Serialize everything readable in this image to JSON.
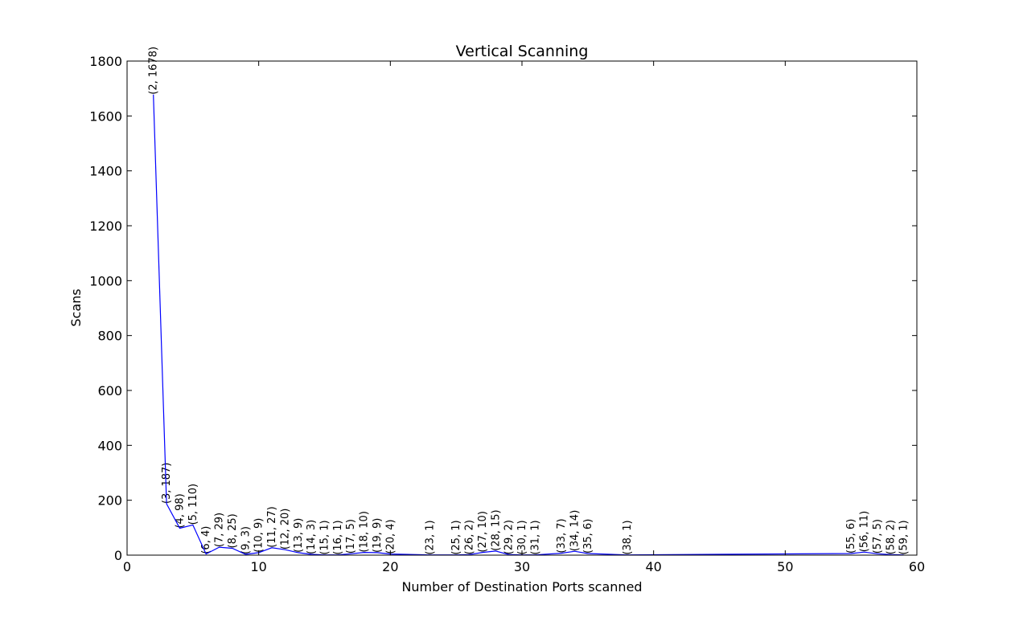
{
  "chart_data": {
    "type": "line",
    "title": "Vertical Scanning",
    "xlabel": "Number of Destination Ports scanned",
    "ylabel": "Scans",
    "xlim": [
      0,
      60
    ],
    "ylim": [
      0,
      1800
    ],
    "xticks": [
      0,
      10,
      20,
      30,
      40,
      50,
      60
    ],
    "yticks": [
      0,
      200,
      400,
      600,
      800,
      1000,
      1200,
      1400,
      1600,
      1800
    ],
    "grid": false,
    "series": [
      {
        "name": "scans",
        "color": "#0000ff",
        "x": [
          2,
          3,
          4,
          5,
          6,
          7,
          8,
          9,
          10,
          11,
          12,
          13,
          14,
          15,
          16,
          17,
          18,
          19,
          20,
          23,
          25,
          26,
          27,
          28,
          29,
          30,
          31,
          33,
          34,
          35,
          38,
          55,
          56,
          57,
          58,
          59
        ],
        "y": [
          1678,
          187,
          98,
          110,
          4,
          29,
          25,
          3,
          9,
          27,
          20,
          9,
          3,
          1,
          1,
          5,
          10,
          9,
          4,
          1,
          1,
          2,
          10,
          15,
          2,
          1,
          1,
          7,
          14,
          6,
          1,
          6,
          11,
          5,
          2,
          1
        ]
      }
    ],
    "annotations": [
      "(2, 1678)",
      "(3, 187)",
      "(4, 98)",
      "(5, 110)",
      "(6, 4)",
      "(7, 29)",
      "(8, 25)",
      "(9, 3)",
      "(10, 9)",
      "(11, 27)",
      "(12, 20)",
      "(13, 9)",
      "(14, 3)",
      "(15, 1)",
      "(16, 1)",
      "(17, 5)",
      "(18, 10)",
      "(19, 9)",
      "(20, 4)",
      "(23, 1)",
      "(25, 1)",
      "(26, 2)",
      "(27, 10)",
      "(28, 15)",
      "(29, 2)",
      "(30, 1)",
      "(31, 1)",
      "(33, 7)",
      "(34, 14)",
      "(35, 6)",
      "(38, 1)",
      "(55, 6)",
      "(56, 11)",
      "(57, 5)",
      "(58, 2)",
      "(59, 1)"
    ]
  }
}
